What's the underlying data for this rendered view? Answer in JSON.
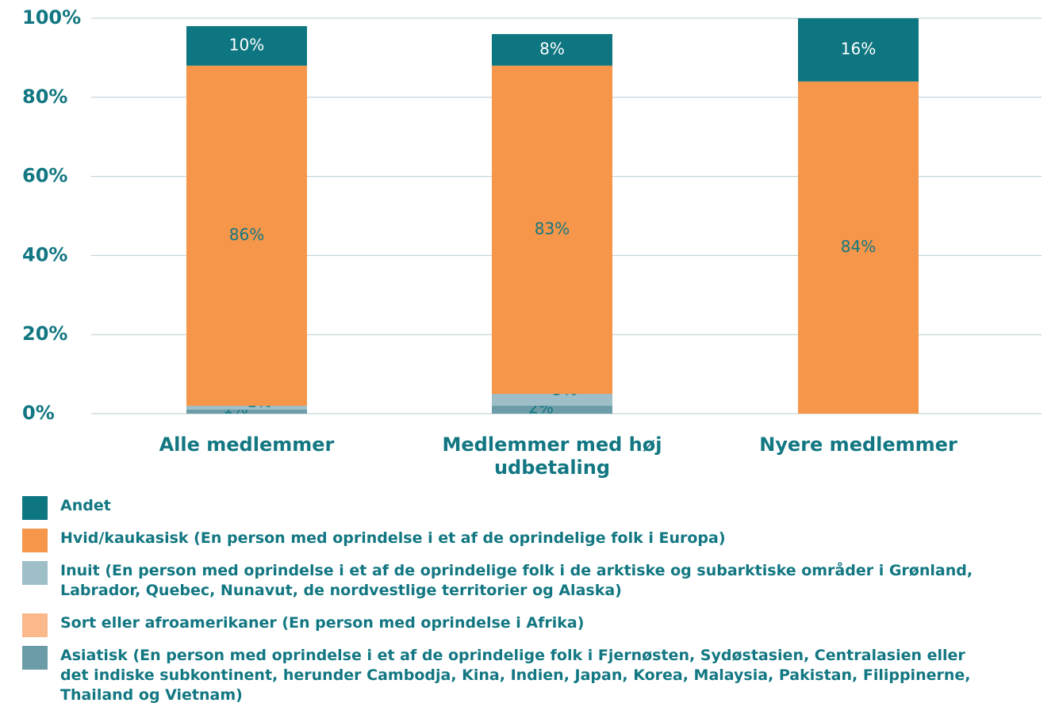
{
  "chart_data": {
    "type": "stacked-bar",
    "categories": [
      "Alle medlemmer",
      "Medlemmer med høj udbetaling",
      "Nyere medlemmer"
    ],
    "series": [
      {
        "name": "Asiatisk (En person med oprindelse i et af de oprindelige folk i Fjernøsten, Sydøstasien, Centralasien eller det indiske subkontinent, herunder Cambodja, Kina, Indien, Japan, Korea, Malaysia, Pakistan, Filippinerne, Thailand og Vietnam)",
        "color": "#6b9ca7",
        "values": [
          1,
          2,
          null
        ],
        "value_labels": [
          "1%",
          "2%",
          null
        ]
      },
      {
        "name": "Sort eller afroamerikaner (En person med oprindelse i Afrika)",
        "color": "#fbb98b",
        "values": [
          null,
          null,
          null
        ],
        "value_labels": [
          null,
          null,
          null
        ]
      },
      {
        "name": "Inuit (En person med oprindelse i et af de oprindelige folk i de arktiske og subarktiske områder i Grønland, Labrador, Quebec, Nunavut, de nordvestlige territorier og Alaska)",
        "color": "#9ebfc7",
        "values": [
          1,
          3,
          null
        ],
        "value_labels": [
          "1%",
          "3%",
          null
        ]
      },
      {
        "name": "Hvid/kaukasisk (En person med oprindelse i et af de oprindelige folk i Europa)",
        "color": "#f5964a",
        "values": [
          86,
          83,
          84
        ],
        "value_labels": [
          "86%",
          "83%",
          "84%"
        ]
      },
      {
        "name": "Andet",
        "color": "#0e7680",
        "values": [
          10,
          8,
          16
        ],
        "value_labels": [
          "10%",
          "8%",
          "16%"
        ]
      }
    ],
    "ylim": [
      0,
      100
    ],
    "yticks": [
      {
        "value": 0,
        "label": "0%"
      },
      {
        "value": 20,
        "label": "20%"
      },
      {
        "value": 40,
        "label": "40%"
      },
      {
        "value": 60,
        "label": "60%"
      },
      {
        "value": 80,
        "label": "80%"
      },
      {
        "value": 100,
        "label": "100%"
      }
    ],
    "grid": true
  }
}
